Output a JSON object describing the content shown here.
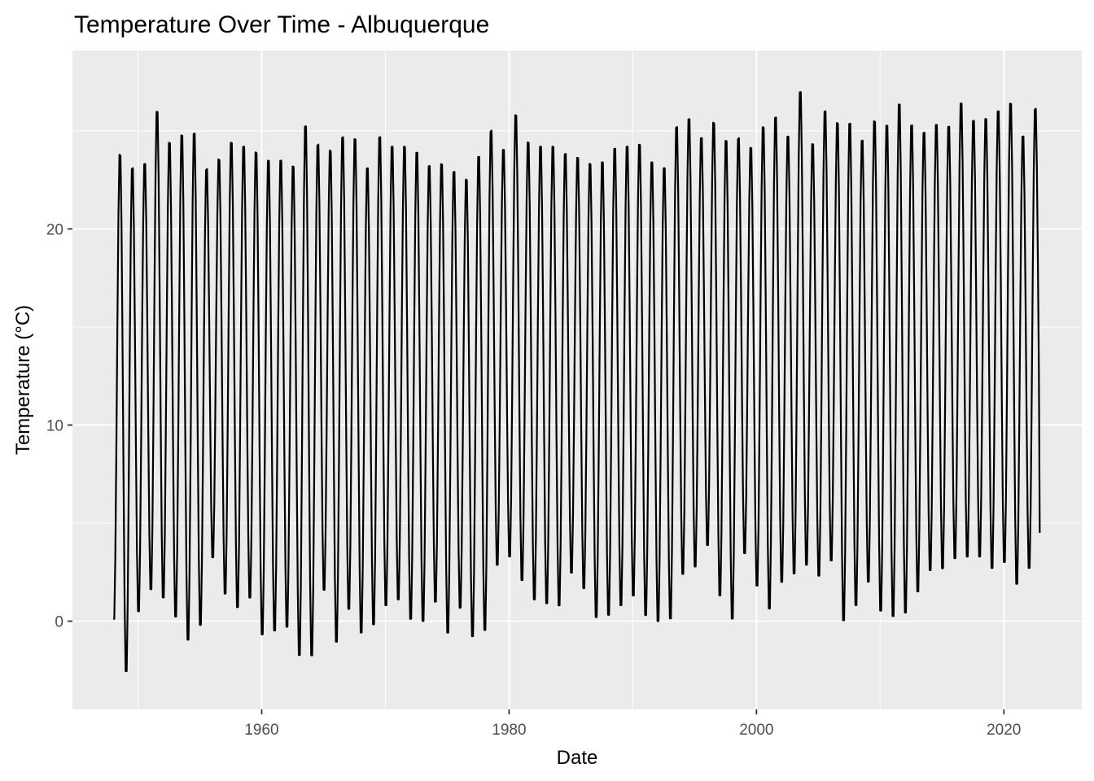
{
  "chart_data": {
    "type": "line",
    "title": "Temperature Over Time - Albuquerque",
    "xlabel": "Date",
    "ylabel": "Temperature (°C)",
    "x_unit": "year",
    "xlim": [
      1944.7,
      2026.3
    ],
    "ylim": [
      -4.5,
      29.1
    ],
    "x_ticks": [
      {
        "value": 1960,
        "label": "1960"
      },
      {
        "value": 1980,
        "label": "1980"
      },
      {
        "value": 2000,
        "label": "2000"
      },
      {
        "value": 2020,
        "label": "2020"
      }
    ],
    "y_ticks": [
      {
        "value": 0,
        "label": "0"
      },
      {
        "value": 10,
        "label": "10"
      },
      {
        "value": 20,
        "label": "20"
      }
    ],
    "grid": true,
    "legend": "none",
    "colors": {
      "panel": "#ebebeb",
      "grid": "#ffffff",
      "line": "#000000",
      "tick_text": "#4d4d4d",
      "tick_mark": "#333333"
    },
    "series": [
      {
        "start": 1948.0,
        "end": 2022.9,
        "last_value": 4.5,
        "annual": [
          [
            1948,
            -0.3,
            24.2
          ],
          [
            1949,
            -3.0,
            23.5
          ],
          [
            1950,
            0.1,
            23.7
          ],
          [
            1951,
            1.2,
            26.4
          ],
          [
            1952,
            0.8,
            24.8
          ],
          [
            1953,
            -0.2,
            25.2
          ],
          [
            1954,
            -1.4,
            25.3
          ],
          [
            1955,
            -0.6,
            23.4
          ],
          [
            1956,
            2.9,
            23.9
          ],
          [
            1957,
            1.0,
            24.8
          ],
          [
            1958,
            0.3,
            24.6
          ],
          [
            1959,
            0.8,
            24.3
          ],
          [
            1960,
            -1.1,
            23.9
          ],
          [
            1961,
            -0.9,
            23.9
          ],
          [
            1962,
            -0.7,
            23.6
          ],
          [
            1963,
            -2.2,
            25.7
          ],
          [
            1964,
            -2.2,
            24.7
          ],
          [
            1965,
            1.2,
            24.4
          ],
          [
            1966,
            -1.5,
            25.1
          ],
          [
            1967,
            0.2,
            25.0
          ],
          [
            1968,
            -1.0,
            23.5
          ],
          [
            1969,
            -0.6,
            25.1
          ],
          [
            1970,
            0.4,
            24.6
          ],
          [
            1971,
            0.7,
            24.6
          ],
          [
            1972,
            -0.3,
            24.3
          ],
          [
            1973,
            -0.4,
            23.6
          ],
          [
            1974,
            0.6,
            23.7
          ],
          [
            1975,
            -1.0,
            23.3
          ],
          [
            1976,
            0.3,
            22.9
          ],
          [
            1977,
            -1.2,
            24.1
          ],
          [
            1978,
            -0.9,
            25.4
          ],
          [
            1979,
            2.5,
            24.4
          ],
          [
            1980,
            2.9,
            26.2
          ],
          [
            1981,
            1.7,
            24.8
          ],
          [
            1982,
            0.7,
            24.6
          ],
          [
            1983,
            0.5,
            24.6
          ],
          [
            1984,
            0.4,
            24.2
          ],
          [
            1985,
            2.1,
            24.0
          ],
          [
            1986,
            1.3,
            23.7
          ],
          [
            1987,
            -0.2,
            23.8
          ],
          [
            1988,
            -0.1,
            24.5
          ],
          [
            1989,
            0.4,
            24.6
          ],
          [
            1990,
            0.9,
            24.7
          ],
          [
            1991,
            -0.1,
            23.8
          ],
          [
            1992,
            -0.4,
            23.5
          ],
          [
            1993,
            -0.3,
            25.6
          ],
          [
            1994,
            2.0,
            26.0
          ],
          [
            1995,
            2.4,
            25.0
          ],
          [
            1996,
            3.5,
            25.8
          ],
          [
            1997,
            0.9,
            24.9
          ],
          [
            1998,
            -0.3,
            25.0
          ],
          [
            1999,
            3.1,
            24.5
          ],
          [
            2000,
            1.4,
            25.6
          ],
          [
            2001,
            0.2,
            26.1
          ],
          [
            2002,
            1.6,
            25.1
          ],
          [
            2003,
            2.0,
            27.4
          ],
          [
            2004,
            2.5,
            24.7
          ],
          [
            2005,
            1.9,
            26.4
          ],
          [
            2006,
            2.7,
            25.8
          ],
          [
            2007,
            -0.4,
            25.8
          ],
          [
            2008,
            0.4,
            24.9
          ],
          [
            2009,
            1.6,
            25.9
          ],
          [
            2010,
            0.1,
            25.7
          ],
          [
            2011,
            -0.2,
            26.8
          ],
          [
            2012,
            0.0,
            25.7
          ],
          [
            2013,
            1.1,
            25.3
          ],
          [
            2014,
            2.2,
            25.7
          ],
          [
            2015,
            2.3,
            25.6
          ],
          [
            2016,
            2.8,
            26.8
          ],
          [
            2017,
            2.9,
            25.9
          ],
          [
            2018,
            2.9,
            26.0
          ],
          [
            2019,
            2.3,
            26.4
          ],
          [
            2020,
            2.6,
            26.8
          ],
          [
            2021,
            1.5,
            25.1
          ],
          [
            2022,
            2.3,
            26.5
          ]
        ]
      }
    ]
  }
}
